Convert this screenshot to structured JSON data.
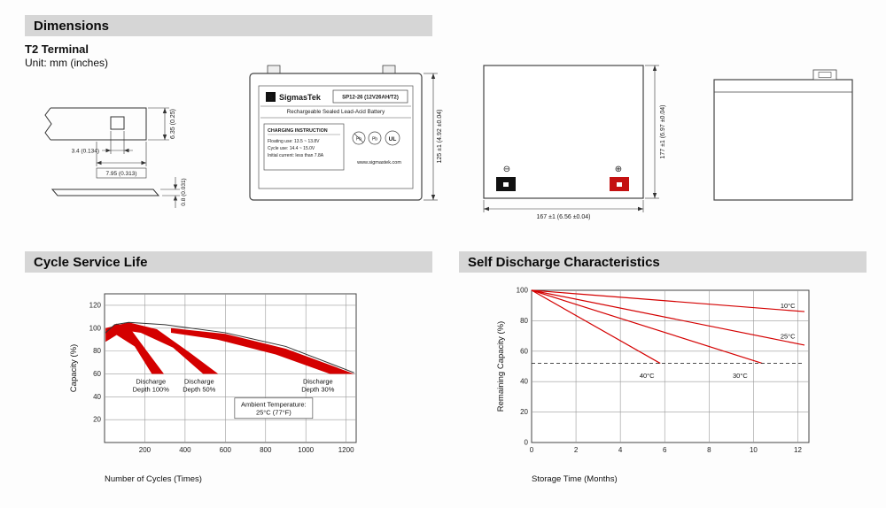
{
  "colors": {
    "header_bg": "#d6d6d6",
    "accent_red": "#d40000",
    "ink": "#1a1a1a",
    "terminal_neg": "#111111",
    "terminal_pos": "#c41111"
  },
  "header": {
    "title": "Dimensions"
  },
  "dimensions_section": {
    "terminal_type": "T2 Terminal",
    "unit_note": "Unit: mm (inches)"
  },
  "terminal_drawing": {
    "dim_hole_width": "3.4 (0.134)",
    "dim_tab_width": "7.95 (0.313)",
    "dim_height": "6.35 (0.25)",
    "dim_thickness": "0.8 (0.031)"
  },
  "front_view": {
    "brand_initial": "S",
    "brand": "SigmasTek",
    "model": "SP12-26 (12V26AH/T2)",
    "subtitle": "Rechargeable Sealed Lead-Acid Battery",
    "charging_title": "CHARGING INSTRUCTION",
    "charging_lines": [
      "Floating use: 13.5 ~ 13.8V",
      "Cycle use: 14.4 ~ 15.0V",
      "Initial current: less than 7.8A"
    ],
    "website": "www.sigmastek.com",
    "pb_label": "Pb",
    "ul_label": "UL",
    "height_dim": "125 ±1 (4.92 ±0.04)"
  },
  "top_view": {
    "width_dim": "167 ±1 (6.56 ±0.04)",
    "depth_dim": "177 ±1 (6.97 ±0.04)",
    "neg_symbol": "⊖",
    "pos_symbol": "⊕"
  },
  "chart_data": [
    {
      "id": "cycle-service-life",
      "type": "area",
      "title": "Cycle Service Life",
      "xlabel": "Number of Cycles (Times)",
      "ylabel": "Capacity (%)",
      "xlim": [
        0,
        1250
      ],
      "ylim": [
        0,
        130
      ],
      "xticks": [
        200,
        400,
        600,
        800,
        1000,
        1200
      ],
      "yticks": [
        20,
        40,
        60,
        80,
        100,
        120
      ],
      "grid": true,
      "legend": "none",
      "series": [
        {
          "name": "Discharge Depth 100%",
          "kind": "band",
          "color": "#d40000",
          "points": [
            [
              5,
              97
            ],
            [
              60,
              104
            ],
            [
              130,
              99
            ],
            [
              210,
              80
            ],
            [
              295,
              60
            ],
            [
              235,
              60
            ],
            [
              150,
              84
            ],
            [
              60,
              94
            ],
            [
              5,
              88
            ]
          ]
        },
        {
          "name": "Discharge Depth 50%",
          "kind": "band",
          "color": "#d40000",
          "points": [
            [
              5,
              100
            ],
            [
              120,
              105
            ],
            [
              260,
              99
            ],
            [
              420,
              79
            ],
            [
              565,
              60
            ],
            [
              490,
              60
            ],
            [
              340,
              83
            ],
            [
              180,
              96
            ],
            [
              60,
              99
            ],
            [
              5,
              95
            ]
          ]
        },
        {
          "name": "Discharge Depth 30%",
          "kind": "band",
          "color": "#d40000",
          "points": [
            [
              330,
              100
            ],
            [
              600,
              95
            ],
            [
              900,
              82
            ],
            [
              1240,
              60
            ],
            [
              1120,
              60
            ],
            [
              850,
              77
            ],
            [
              560,
              90
            ],
            [
              330,
              96
            ]
          ]
        },
        {
          "name": "capacity-envelope",
          "kind": "line",
          "color": "#333333",
          "width": 1,
          "points": [
            [
              5,
              96
            ],
            [
              50,
              103
            ],
            [
              120,
              105
            ],
            [
              300,
              103
            ],
            [
              600,
              96
            ],
            [
              900,
              84
            ],
            [
              1240,
              61
            ]
          ]
        }
      ],
      "annotations": [
        {
          "lines": [
            "Discharge",
            "Depth 100%"
          ],
          "x": 230,
          "y": 50
        },
        {
          "lines": [
            "Discharge",
            "Depth 50%"
          ],
          "x": 470,
          "y": 50
        },
        {
          "lines": [
            "Discharge",
            "Depth 30%"
          ],
          "x": 1060,
          "y": 50
        },
        {
          "lines": [
            "Ambient Temperature:",
            "25°C (77°F)"
          ],
          "x": 840,
          "y": 30,
          "box": true
        }
      ]
    },
    {
      "id": "self-discharge",
      "type": "line",
      "title": "Self Discharge Characteristics",
      "xlabel": "Storage Time (Months)",
      "ylabel": "Remaining Capacity (%)",
      "xlim": [
        0,
        12.5
      ],
      "ylim": [
        0,
        100
      ],
      "xticks": [
        0,
        2,
        4,
        6,
        8,
        10,
        12
      ],
      "yticks": [
        0,
        20,
        40,
        60,
        80,
        100
      ],
      "grid": true,
      "legend": "inline-labels",
      "series": [
        {
          "name": "10°C",
          "kind": "line",
          "color": "#d40000",
          "points": [
            [
              0,
              100
            ],
            [
              12.3,
              86
            ]
          ]
        },
        {
          "name": "25°C",
          "kind": "line",
          "color": "#d40000",
          "points": [
            [
              0,
              100
            ],
            [
              12.3,
              64
            ]
          ]
        },
        {
          "name": "30°C",
          "kind": "line",
          "color": "#d40000",
          "points": [
            [
              0,
              100
            ],
            [
              10.4,
              52
            ]
          ]
        },
        {
          "name": "40°C",
          "kind": "line",
          "color": "#d40000",
          "points": [
            [
              0,
              100
            ],
            [
              5.8,
              52
            ]
          ]
        },
        {
          "name": "50%-reference",
          "kind": "line",
          "color": "#333333",
          "dash": "4 3",
          "width": 0.9,
          "points": [
            [
              0,
              52
            ],
            [
              12.3,
              52
            ]
          ]
        }
      ],
      "annotations": [
        {
          "lines": [
            "10°C"
          ],
          "x": 11.55,
          "y": 90
        },
        {
          "lines": [
            "25°C"
          ],
          "x": 11.55,
          "y": 70
        },
        {
          "lines": [
            "40°C"
          ],
          "x": 5.2,
          "y": 44
        },
        {
          "lines": [
            "30°C"
          ],
          "x": 9.4,
          "y": 44
        }
      ]
    }
  ]
}
